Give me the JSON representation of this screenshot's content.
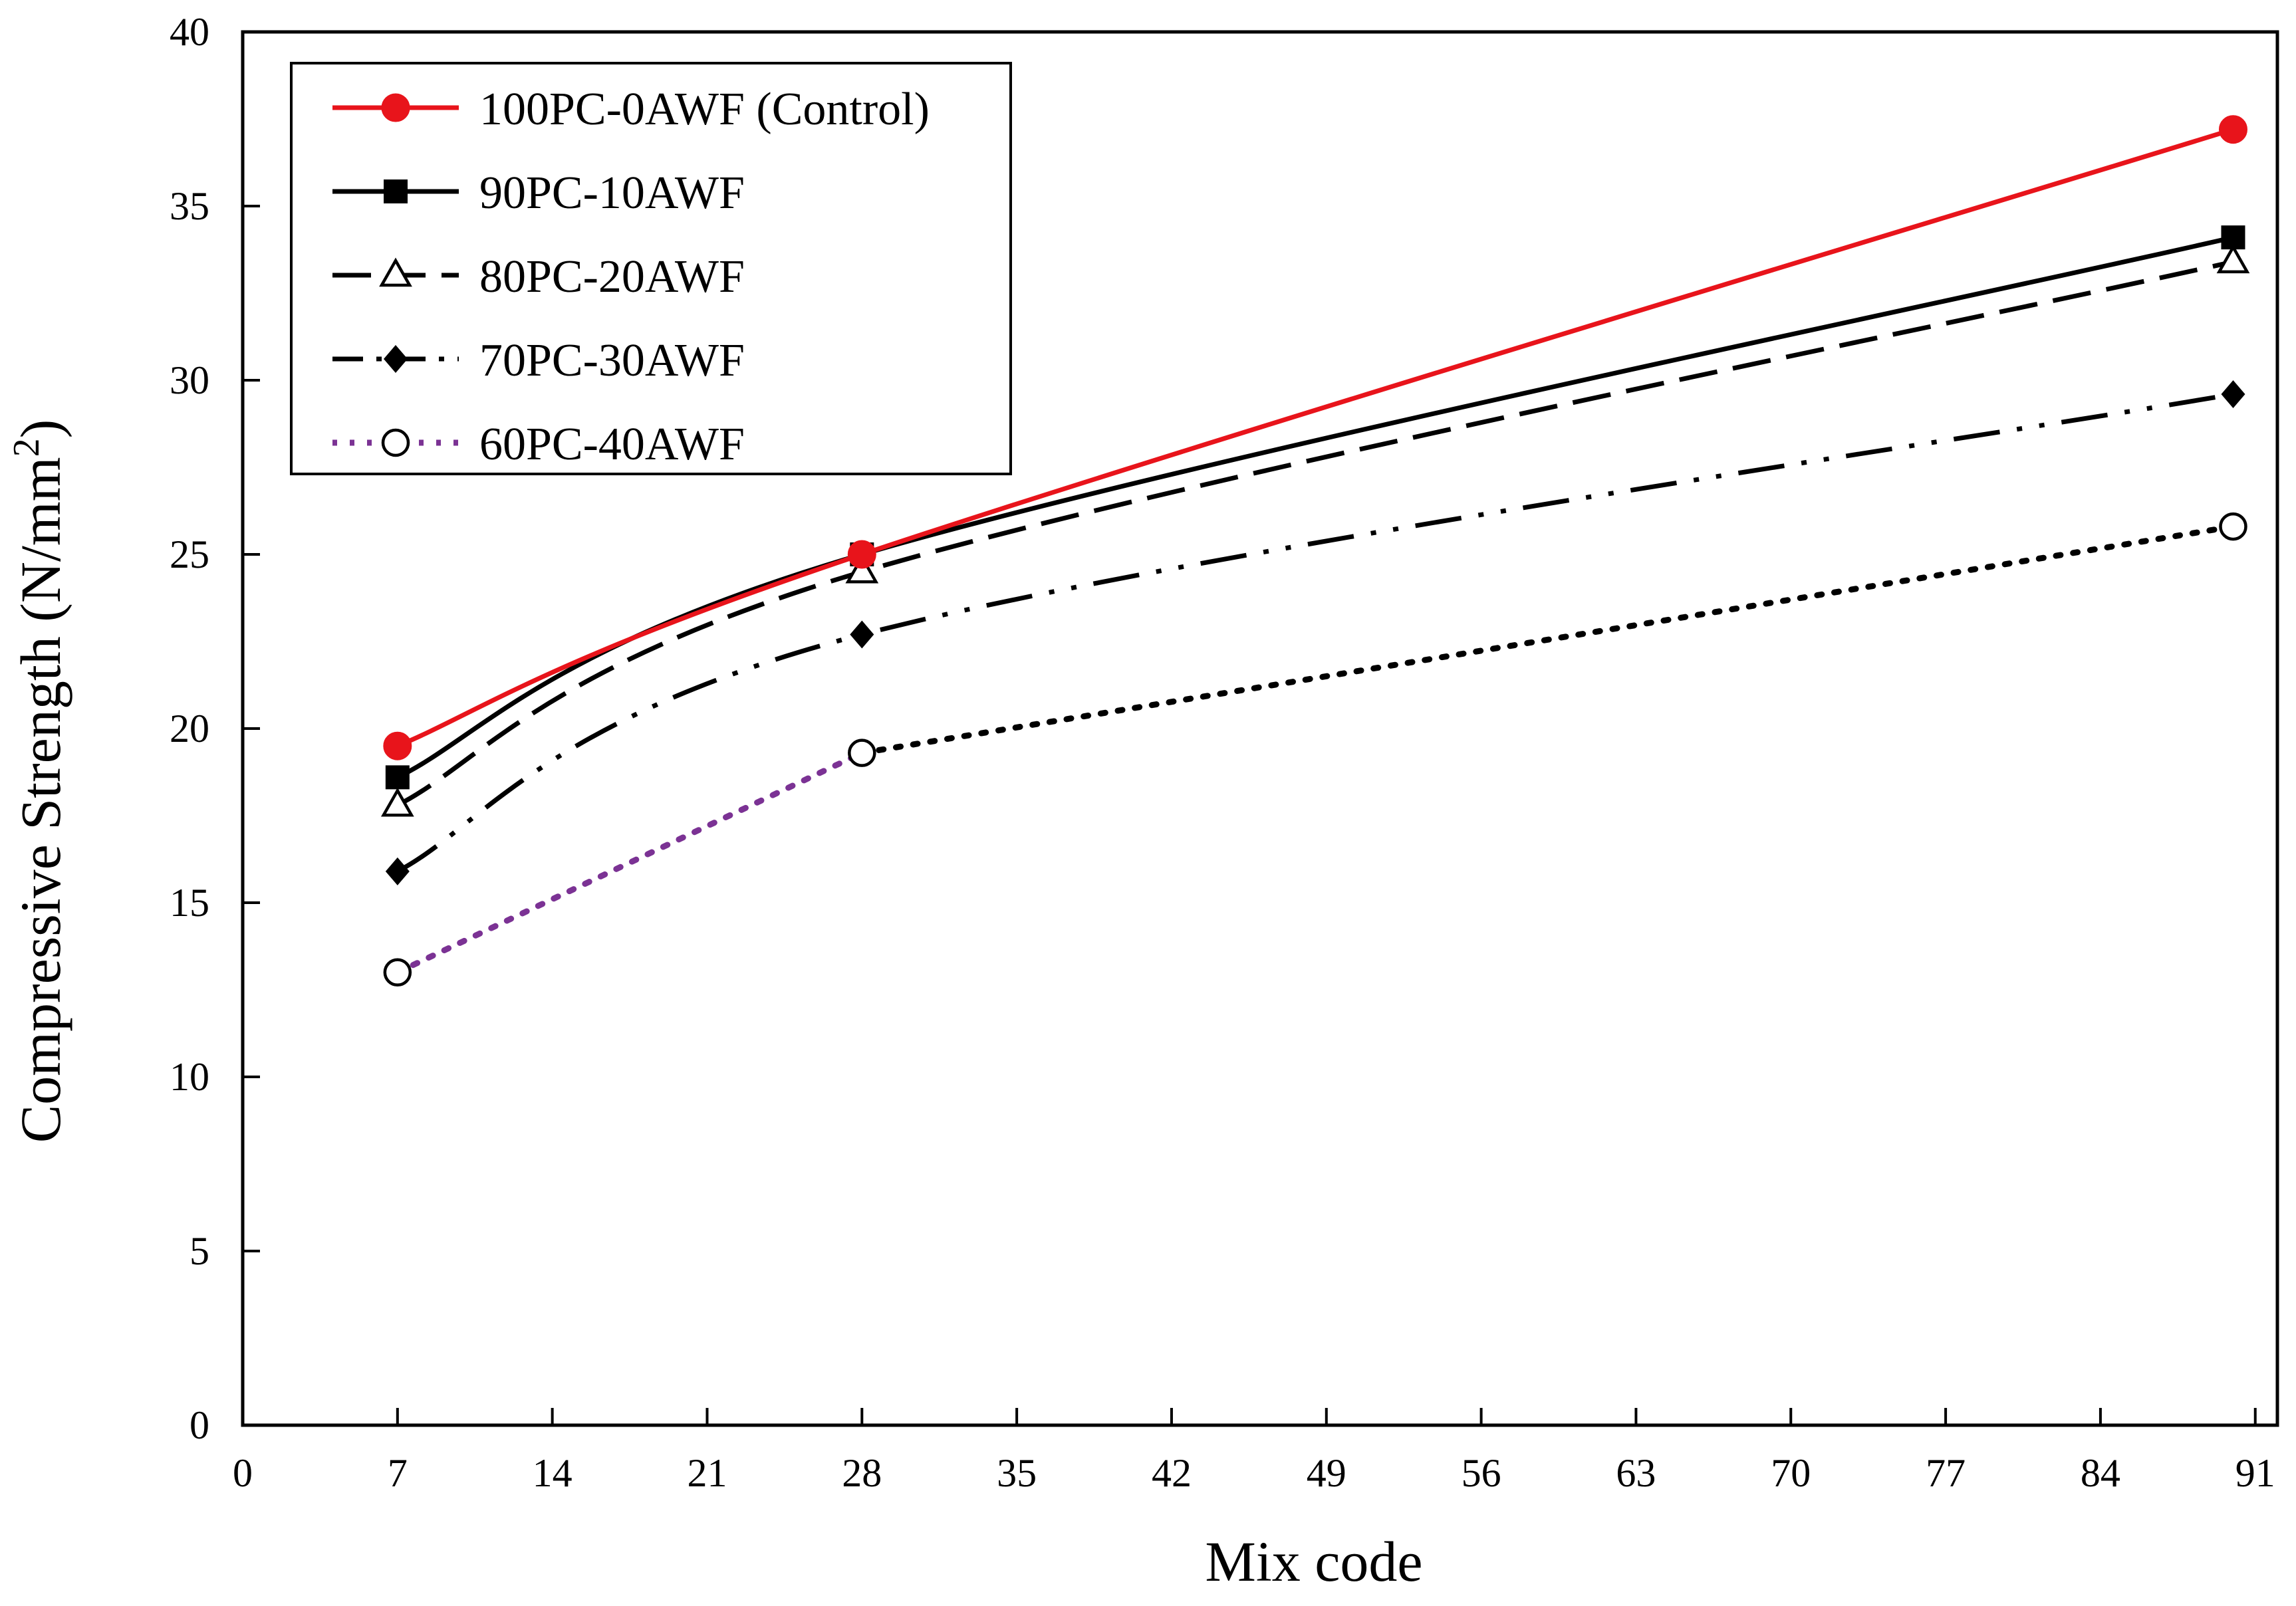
{
  "chart_data": {
    "type": "line",
    "title": "",
    "xlabel": "Mix code",
    "ylabel": "Compressive Strength (N/mm",
    "ylabel_sup": "2",
    "ylabel_close": ")",
    "xlim": [
      0,
      92
    ],
    "ylim": [
      0,
      40
    ],
    "x_ticks": [
      0,
      7,
      14,
      21,
      28,
      35,
      42,
      49,
      56,
      63,
      70,
      77,
      84,
      91
    ],
    "y_ticks": [
      0,
      5,
      10,
      15,
      20,
      25,
      30,
      35,
      40
    ],
    "grid": false,
    "legend_position": "top-left",
    "x": [
      7,
      28,
      90
    ],
    "series": [
      {
        "name": "100PC-0AWF (Control)",
        "values": [
          19.5,
          25.0,
          37.2
        ],
        "color": "#e8141b",
        "marker": "circle-filled",
        "dash": "solid"
      },
      {
        "name": "90PC-10AWF",
        "values": [
          18.6,
          25.0,
          34.1
        ],
        "color": "#000000",
        "marker": "square-filled",
        "dash": "solid"
      },
      {
        "name": "80PC-20AWF",
        "values": [
          17.8,
          24.5,
          33.4
        ],
        "color": "#000000",
        "marker": "triangle-open",
        "dash": "long-dash"
      },
      {
        "name": "70PC-30AWF",
        "values": [
          15.9,
          22.7,
          29.6
        ],
        "color": "#000000",
        "marker": "diamond-filled",
        "dash": "dash-dot-dot"
      },
      {
        "name": "60PC-40AWF",
        "values": [
          13.0,
          19.3,
          25.8
        ],
        "color": "#7b3294",
        "color_late": "#000000",
        "marker": "circle-open",
        "dash": "dot"
      }
    ]
  }
}
